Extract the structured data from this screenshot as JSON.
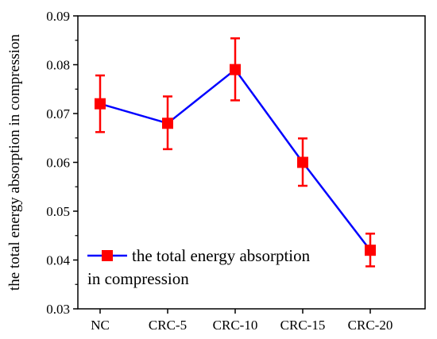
{
  "chart_data": {
    "type": "line",
    "title": "",
    "xlabel": "",
    "ylabel": "the total energy absorption in compression",
    "categories": [
      "NC",
      "CRC-5",
      "CRC-10",
      "CRC-15",
      "CRC-20"
    ],
    "ylim": [
      0.03,
      0.09
    ],
    "yticks": [
      "0.03",
      "0.04",
      "0.05",
      "0.06",
      "0.07",
      "0.08",
      "0.09"
    ],
    "series": [
      {
        "name": "the total energy absorption in compression",
        "values": [
          0.072,
          0.068,
          0.079,
          0.06,
          0.042
        ],
        "err_low": [
          0.0662,
          0.0627,
          0.0727,
          0.0552,
          0.0387
        ],
        "err_high": [
          0.0778,
          0.0735,
          0.0854,
          0.0649,
          0.0454
        ],
        "line_color": "#0000ff",
        "marker_color": "#ff0000"
      }
    ],
    "grid": false,
    "legend": {
      "placement": "bottom-left",
      "lines": [
        "the total energy absorption",
        "in compression"
      ]
    }
  }
}
